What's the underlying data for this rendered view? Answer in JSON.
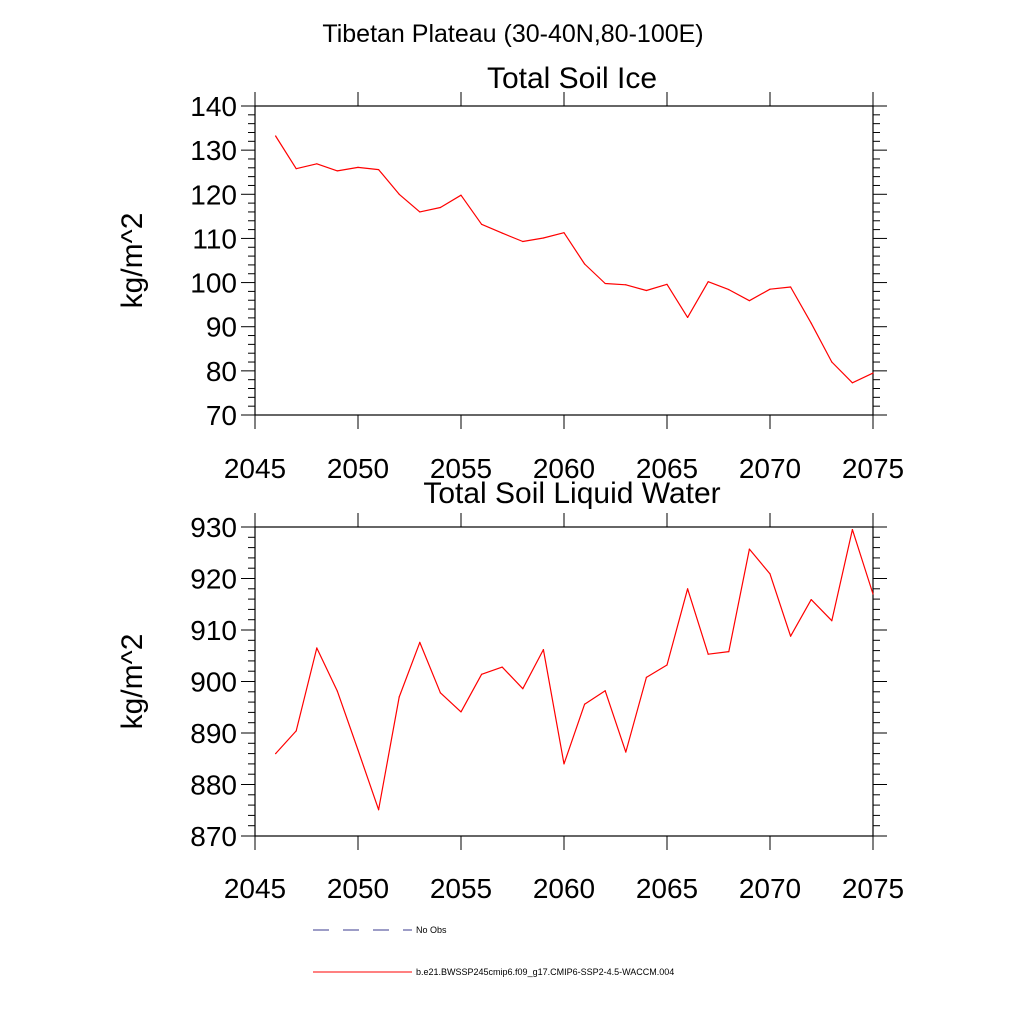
{
  "suptitle": "Tibetan Plateau (30-40N,80-100E)",
  "chart_data": [
    {
      "type": "line",
      "title": "Total Soil Ice",
      "xlabel": "",
      "ylabel": "kg/m^2",
      "xlim": [
        2045,
        2075
      ],
      "ylim": [
        70,
        140
      ],
      "xticks": [
        2045,
        2050,
        2055,
        2060,
        2065,
        2070,
        2075
      ],
      "yticks": [
        70,
        80,
        90,
        100,
        110,
        120,
        130,
        140
      ],
      "grid": false,
      "series": [
        {
          "name": "b.e21.BWSSP245cmip6.f09_g17.CMIP6-SSP2-4.5-WACCM.004",
          "color": "#ff0000",
          "x": [
            2046,
            2047,
            2048,
            2049,
            2050,
            2051,
            2052,
            2053,
            2054,
            2055,
            2056,
            2057,
            2058,
            2059,
            2060,
            2061,
            2062,
            2063,
            2064,
            2065,
            2066,
            2067,
            2068,
            2069,
            2070,
            2071,
            2072,
            2073,
            2074,
            2075
          ],
          "values": [
            133.2,
            125.8,
            126.9,
            125.3,
            126.1,
            125.6,
            120.0,
            116.0,
            117.0,
            119.8,
            113.2,
            111.2,
            109.3,
            110.1,
            111.3,
            104.2,
            99.8,
            99.5,
            98.2,
            99.6,
            92.1,
            100.2,
            98.4,
            95.9,
            98.5,
            99.0,
            90.8,
            82.0,
            77.3,
            79.5
          ]
        }
      ]
    },
    {
      "type": "line",
      "title": "Total Soil Liquid Water",
      "xlabel": "",
      "ylabel": "kg/m^2",
      "xlim": [
        2045,
        2075
      ],
      "ylim": [
        870,
        930
      ],
      "xticks": [
        2045,
        2050,
        2055,
        2060,
        2065,
        2070,
        2075
      ],
      "yticks": [
        870,
        880,
        890,
        900,
        910,
        920,
        930
      ],
      "grid": false,
      "series": [
        {
          "name": "b.e21.BWSSP245cmip6.f09_g17.CMIP6-SSP2-4.5-WACCM.004",
          "color": "#ff0000",
          "x": [
            2046,
            2047,
            2048,
            2049,
            2050,
            2051,
            2052,
            2053,
            2054,
            2055,
            2056,
            2057,
            2058,
            2059,
            2060,
            2061,
            2062,
            2063,
            2064,
            2065,
            2066,
            2067,
            2068,
            2069,
            2070,
            2071,
            2072,
            2073,
            2074,
            2075
          ],
          "values": [
            886.0,
            890.4,
            906.5,
            898.1,
            886.7,
            875.1,
            897.0,
            907.6,
            897.8,
            894.1,
            901.4,
            902.8,
            898.6,
            906.2,
            884.0,
            895.6,
            898.2,
            886.3,
            900.8,
            903.2,
            918.0,
            905.3,
            905.8,
            925.7,
            920.9,
            908.8,
            915.9,
            911.8,
            929.5,
            917.0
          ]
        }
      ]
    }
  ],
  "legend": {
    "placement": "bottom",
    "items": [
      {
        "label": "No Obs",
        "style": "dashed",
        "color": "#3b3b8f"
      },
      {
        "label": "b.e21.BWSSP245cmip6.f09_g17.CMIP6-SSP2-4.5-WACCM.004",
        "style": "solid",
        "color": "#ff0000"
      }
    ]
  }
}
